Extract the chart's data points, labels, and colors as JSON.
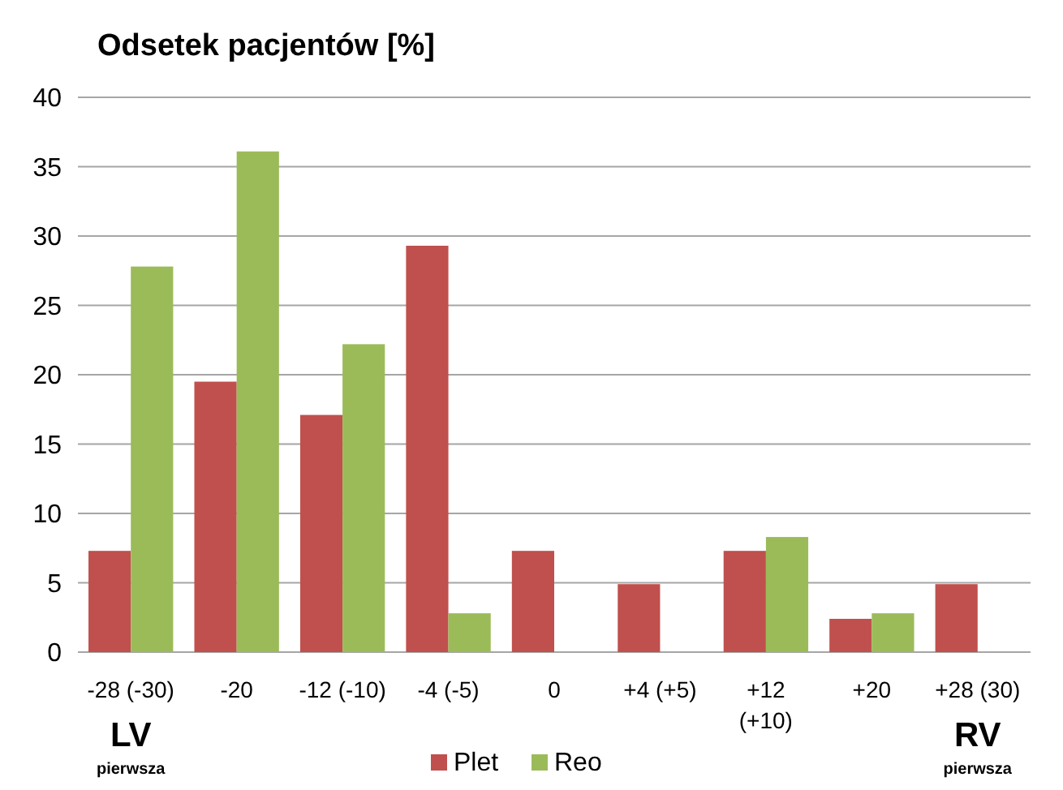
{
  "chart_data": {
    "type": "bar",
    "title": "Odsetek pacjentów [%]",
    "categories": [
      "-28 (-30)",
      "-20",
      "-12 (-10)",
      "-4 (-5)",
      "0",
      "+4 (+5)",
      "+12\n(+10)",
      "+20",
      "+28 (30)"
    ],
    "series": [
      {
        "name": "Plet",
        "color": "#c0504d",
        "values": [
          7.3,
          19.5,
          17.1,
          29.3,
          7.3,
          4.9,
          7.3,
          2.4,
          4.9
        ]
      },
      {
        "name": "Reo",
        "color": "#9bbb59",
        "values": [
          27.8,
          36.1,
          22.2,
          2.8,
          0,
          0,
          8.3,
          2.8,
          0
        ]
      }
    ],
    "ylim": [
      0,
      40
    ],
    "yticks": [
      0,
      5,
      10,
      15,
      20,
      25,
      30,
      35,
      40
    ],
    "grid": "y",
    "legend": "bottom",
    "annotations": [
      "LV",
      "pierwsza",
      "RV",
      "pierwsza"
    ]
  }
}
